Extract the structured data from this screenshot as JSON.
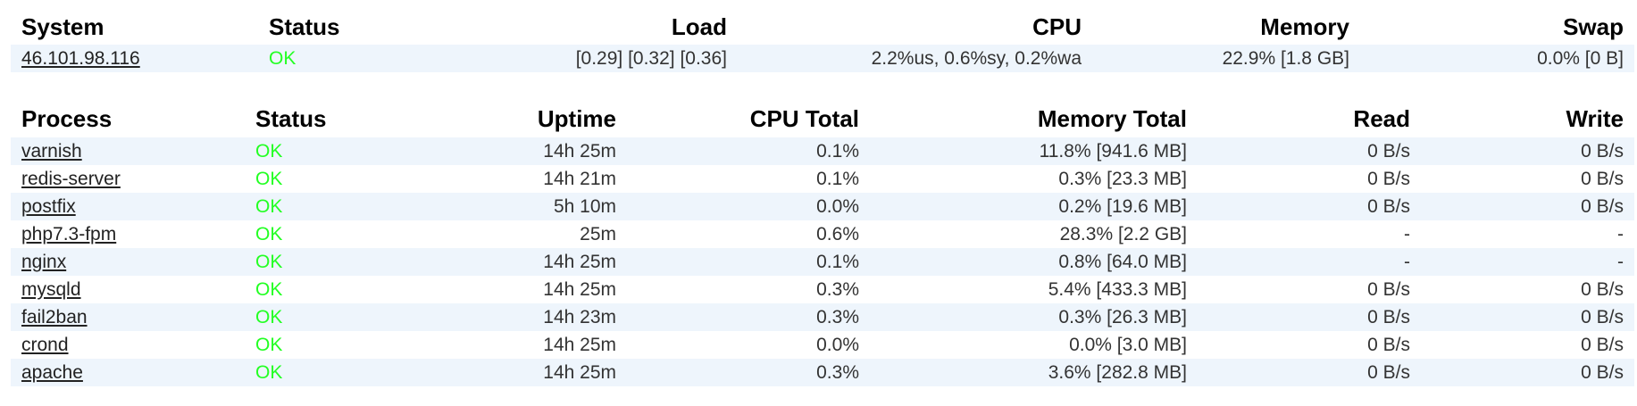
{
  "colors": {
    "ok_status": "#22ff22",
    "row_stripe": "#eef5fc",
    "header_text": "#000000"
  },
  "system": {
    "headers": {
      "system": "System",
      "status": "Status",
      "load": "Load",
      "cpu": "CPU",
      "memory": "Memory",
      "swap": "Swap"
    },
    "row": {
      "host": "46.101.98.116",
      "status": "OK",
      "load": "[0.29] [0.32] [0.36]",
      "cpu": "2.2%us, 0.6%sy, 0.2%wa",
      "memory": "22.9% [1.8 GB]",
      "swap": "0.0% [0 B]"
    }
  },
  "processes": {
    "headers": {
      "process": "Process",
      "status": "Status",
      "uptime": "Uptime",
      "cpu_total": "CPU Total",
      "memory_total": "Memory Total",
      "read": "Read",
      "write": "Write"
    },
    "rows": [
      {
        "name": "varnish",
        "status": "OK",
        "uptime": "14h 25m",
        "cpu": "0.1%",
        "memory": "11.8% [941.6 MB]",
        "read": "0 B/s",
        "write": "0 B/s"
      },
      {
        "name": "redis-server",
        "status": "OK",
        "uptime": "14h 21m",
        "cpu": "0.1%",
        "memory": "0.3% [23.3 MB]",
        "read": "0 B/s",
        "write": "0 B/s"
      },
      {
        "name": "postfix",
        "status": "OK",
        "uptime": "5h 10m",
        "cpu": "0.0%",
        "memory": "0.2% [19.6 MB]",
        "read": "0 B/s",
        "write": "0 B/s"
      },
      {
        "name": "php7.3-fpm",
        "status": "OK",
        "uptime": "25m",
        "cpu": "0.6%",
        "memory": "28.3% [2.2 GB]",
        "read": "-",
        "write": "-"
      },
      {
        "name": "nginx",
        "status": "OK",
        "uptime": "14h 25m",
        "cpu": "0.1%",
        "memory": "0.8% [64.0 MB]",
        "read": "-",
        "write": "-"
      },
      {
        "name": "mysqld",
        "status": "OK",
        "uptime": "14h 25m",
        "cpu": "0.3%",
        "memory": "5.4% [433.3 MB]",
        "read": "0 B/s",
        "write": "0 B/s"
      },
      {
        "name": "fail2ban",
        "status": "OK",
        "uptime": "14h 23m",
        "cpu": "0.3%",
        "memory": "0.3% [26.3 MB]",
        "read": "0 B/s",
        "write": "0 B/s"
      },
      {
        "name": "crond",
        "status": "OK",
        "uptime": "14h 25m",
        "cpu": "0.0%",
        "memory": "0.0% [3.0 MB]",
        "read": "0 B/s",
        "write": "0 B/s"
      },
      {
        "name": "apache",
        "status": "OK",
        "uptime": "14h 25m",
        "cpu": "0.3%",
        "memory": "3.6% [282.8 MB]",
        "read": "0 B/s",
        "write": "0 B/s"
      }
    ]
  }
}
